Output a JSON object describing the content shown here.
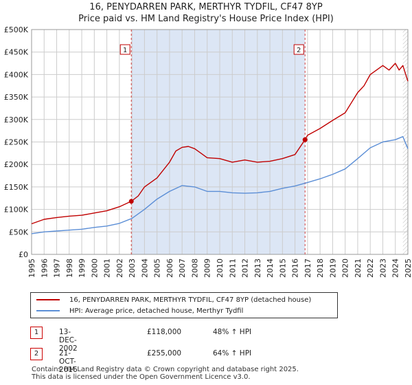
{
  "title_line1": "16, PENYDARREN PARK, MERTHYR TYDFIL, CF47 8YP",
  "title_line2": "Price paid vs. HM Land Registry's House Price Index (HPI)",
  "chart_data": {
    "type": "line",
    "xlim": [
      1995,
      2025
    ],
    "ylim": [
      0,
      500000
    ],
    "y_ticks": [
      0,
      50000,
      100000,
      150000,
      200000,
      250000,
      300000,
      350000,
      400000,
      450000,
      500000
    ],
    "y_tick_labels": [
      "£0",
      "£50K",
      "£100K",
      "£150K",
      "£200K",
      "£250K",
      "£300K",
      "£350K",
      "£400K",
      "£450K",
      "£500K"
    ],
    "x_tick_labels": [
      "1995",
      "1996",
      "1997",
      "1998",
      "1999",
      "2000",
      "2001",
      "2002",
      "2003",
      "2004",
      "2005",
      "2006",
      "2007",
      "2008",
      "2009",
      "2010",
      "2011",
      "2012",
      "2013",
      "2014",
      "2015",
      "2016",
      "2017",
      "2018",
      "2019",
      "2020",
      "2021",
      "2022",
      "2023",
      "2024",
      "2025"
    ],
    "grid": true,
    "shaded_region": {
      "from": 2002.95,
      "to": 2016.8,
      "color": "#dce6f5"
    },
    "hatch_from": 2024.6,
    "series": [
      {
        "name": "16, PENYDARREN PARK, MERTHYR TYDFIL, CF47 8YP (detached house)",
        "color": "#c00000",
        "x": [
          1995,
          1996,
          1997,
          1998,
          1999,
          2000,
          2001,
          2002,
          2002.95,
          2003.5,
          2004,
          2005,
          2006,
          2006.5,
          2007,
          2007.5,
          2008,
          2008.5,
          2009,
          2010,
          2011,
          2012,
          2013,
          2014,
          2015,
          2016,
          2016.8,
          2017,
          2018,
          2019,
          2020,
          2021,
          2021.5,
          2022,
          2022.5,
          2023,
          2023.5,
          2024,
          2024.3,
          2024.6,
          2025
        ],
        "values": [
          68000,
          78000,
          82000,
          85000,
          87000,
          92000,
          97000,
          106000,
          118000,
          130000,
          150000,
          170000,
          205000,
          230000,
          238000,
          240000,
          235000,
          225000,
          215000,
          213000,
          205000,
          210000,
          205000,
          207000,
          213000,
          222000,
          255000,
          265000,
          280000,
          298000,
          315000,
          360000,
          375000,
          400000,
          410000,
          420000,
          410000,
          425000,
          410000,
          420000,
          385000
        ]
      },
      {
        "name": "HPI: Average price, detached house, Merthyr Tydfil",
        "color": "#5b8ed6",
        "x": [
          1995,
          1996,
          1997,
          1998,
          1999,
          2000,
          2001,
          2002,
          2003,
          2004,
          2005,
          2006,
          2007,
          2008,
          2009,
          2010,
          2011,
          2012,
          2013,
          2014,
          2015,
          2016,
          2017,
          2018,
          2019,
          2020,
          2021,
          2022,
          2023,
          2024,
          2024.6,
          2025
        ],
        "values": [
          46000,
          50000,
          52000,
          54000,
          56000,
          60000,
          63000,
          69000,
          80000,
          100000,
          123000,
          140000,
          153000,
          150000,
          140000,
          140000,
          137000,
          136000,
          137000,
          140000,
          147000,
          152000,
          160000,
          168000,
          178000,
          190000,
          213000,
          237000,
          250000,
          255000,
          262000,
          235000
        ]
      }
    ],
    "sales": [
      {
        "label": "1",
        "x": 2002.95,
        "value": 118000
      },
      {
        "label": "2",
        "x": 2016.8,
        "value": 255000
      }
    ]
  },
  "legend": {
    "item1": "16, PENYDARREN PARK, MERTHYR TYDFIL, CF47 8YP (detached house)",
    "item2": "HPI: Average price, detached house, Merthyr Tydfil"
  },
  "sales_table": [
    {
      "num": "1",
      "date": "13-DEC-2002",
      "price": "£118,000",
      "hpi": "48% ↑ HPI"
    },
    {
      "num": "2",
      "date": "21-OCT-2016",
      "price": "£255,000",
      "hpi": "64% ↑ HPI"
    }
  ],
  "footer_line1": "Contains HM Land Registry data © Crown copyright and database right 2025.",
  "footer_line2": "This data is licensed under the Open Government Licence v3.0.",
  "colors": {
    "red": "#c00000",
    "blue": "#5b8ed6",
    "shade": "#dce6f5",
    "grid": "#cccccc"
  }
}
